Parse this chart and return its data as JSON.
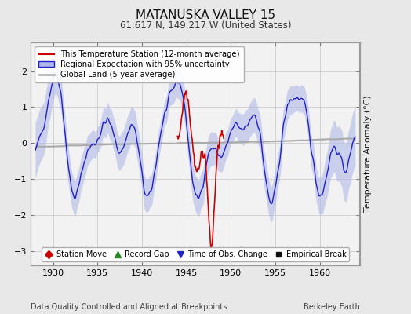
{
  "title": "MATANUSKA VALLEY 15",
  "subtitle": "61.617 N, 149.217 W (United States)",
  "xlabel_bottom": "Data Quality Controlled and Aligned at Breakpoints",
  "xlabel_right": "Berkeley Earth",
  "ylabel": "Temperature Anomaly (°C)",
  "xlim": [
    1927.5,
    1964.5
  ],
  "ylim": [
    -3.4,
    2.8
  ],
  "yticks": [
    -3,
    -2,
    -1,
    0,
    1,
    2
  ],
  "xticks": [
    1930,
    1935,
    1940,
    1945,
    1950,
    1955,
    1960
  ],
  "bg_color": "#e8e8e8",
  "plot_bg_color": "#f2f2f2",
  "seed": 42
}
